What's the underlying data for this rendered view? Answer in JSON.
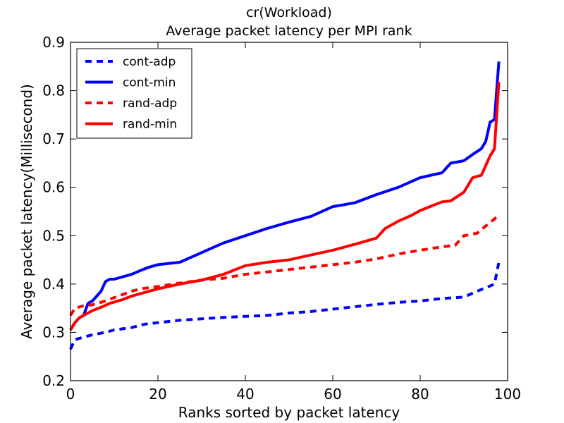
{
  "chart_data": {
    "type": "line",
    "title": "cr(Workload)",
    "subtitle": "Average packet latency per MPI rank",
    "xlabel": "Ranks sorted by packet latency",
    "ylabel": "Average packet latency(Millisecond)",
    "xlim": [
      0,
      100
    ],
    "ylim": [
      0.2,
      0.9
    ],
    "xticks": [
      "0",
      "20",
      "40",
      "60",
      "80",
      "100"
    ],
    "yticks": [
      "0.2",
      "0.3",
      "0.4",
      "0.5",
      "0.6",
      "0.7",
      "0.8",
      "0.9"
    ],
    "grid": false,
    "legend_position": "top-left",
    "series": [
      {
        "name": "cont-adp",
        "color": "#0000ff",
        "style": "dashed",
        "x": [
          0,
          1,
          3,
          5,
          8,
          10,
          14,
          17,
          20,
          25,
          30,
          35,
          40,
          45,
          50,
          55,
          60,
          65,
          70,
          75,
          80,
          85,
          90,
          93,
          95,
          97,
          98
        ],
        "y": [
          0.265,
          0.285,
          0.29,
          0.295,
          0.3,
          0.305,
          0.31,
          0.317,
          0.32,
          0.325,
          0.328,
          0.331,
          0.333,
          0.335,
          0.34,
          0.343,
          0.348,
          0.353,
          0.358,
          0.362,
          0.365,
          0.37,
          0.373,
          0.385,
          0.392,
          0.4,
          0.445
        ]
      },
      {
        "name": "cont-min",
        "color": "#0000ff",
        "style": "solid",
        "x": [
          0,
          1,
          2,
          3,
          4,
          5,
          6,
          7,
          8,
          9,
          10,
          12,
          14,
          16,
          18,
          20,
          25,
          30,
          35,
          40,
          45,
          50,
          55,
          60,
          65,
          70,
          75,
          80,
          85,
          87,
          90,
          92,
          94,
          95,
          96,
          97,
          98
        ],
        "y": [
          0.305,
          0.32,
          0.33,
          0.335,
          0.36,
          0.365,
          0.375,
          0.385,
          0.405,
          0.41,
          0.41,
          0.415,
          0.42,
          0.428,
          0.435,
          0.44,
          0.445,
          0.465,
          0.485,
          0.5,
          0.515,
          0.528,
          0.54,
          0.56,
          0.568,
          0.585,
          0.6,
          0.62,
          0.63,
          0.65,
          0.655,
          0.668,
          0.68,
          0.695,
          0.735,
          0.74,
          0.86
        ]
      },
      {
        "name": "rand-adp",
        "color": "#ff0000",
        "style": "dashed",
        "x": [
          0,
          1,
          3,
          5,
          8,
          10,
          14,
          16,
          20,
          25,
          30,
          35,
          40,
          45,
          50,
          55,
          60,
          65,
          70,
          75,
          80,
          85,
          88,
          90,
          93,
          95,
          98
        ],
        "y": [
          0.335,
          0.35,
          0.355,
          0.357,
          0.365,
          0.372,
          0.385,
          0.39,
          0.395,
          0.402,
          0.408,
          0.412,
          0.42,
          0.425,
          0.43,
          0.435,
          0.44,
          0.445,
          0.452,
          0.462,
          0.47,
          0.477,
          0.48,
          0.5,
          0.505,
          0.52,
          0.542
        ]
      },
      {
        "name": "rand-min",
        "color": "#ff0000",
        "style": "solid",
        "x": [
          0,
          1,
          2,
          3,
          5,
          7,
          9,
          12,
          14,
          16,
          18,
          20,
          25,
          30,
          35,
          40,
          45,
          50,
          55,
          60,
          65,
          70,
          72,
          75,
          78,
          80,
          85,
          87,
          90,
          92,
          94,
          96,
          97,
          98
        ],
        "y": [
          0.305,
          0.32,
          0.33,
          0.335,
          0.345,
          0.352,
          0.36,
          0.368,
          0.375,
          0.38,
          0.385,
          0.39,
          0.4,
          0.408,
          0.42,
          0.438,
          0.445,
          0.45,
          0.46,
          0.47,
          0.482,
          0.495,
          0.515,
          0.53,
          0.542,
          0.552,
          0.57,
          0.572,
          0.59,
          0.62,
          0.625,
          0.665,
          0.68,
          0.818
        ]
      }
    ]
  }
}
